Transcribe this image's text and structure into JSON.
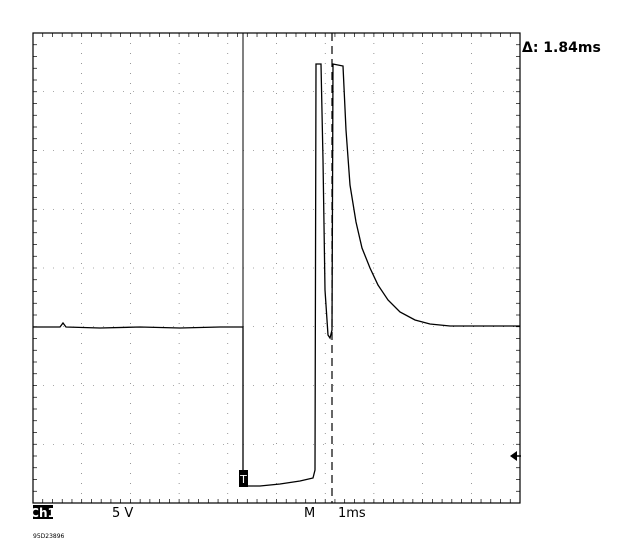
{
  "cursor_delta": "Δ: 1.84ms",
  "channel": "Ch1",
  "volts_per_div": "5 V",
  "trigger_marker": "T",
  "timebase_label": "M",
  "time_per_div": "1ms",
  "figure_id": "95D23896"
}
